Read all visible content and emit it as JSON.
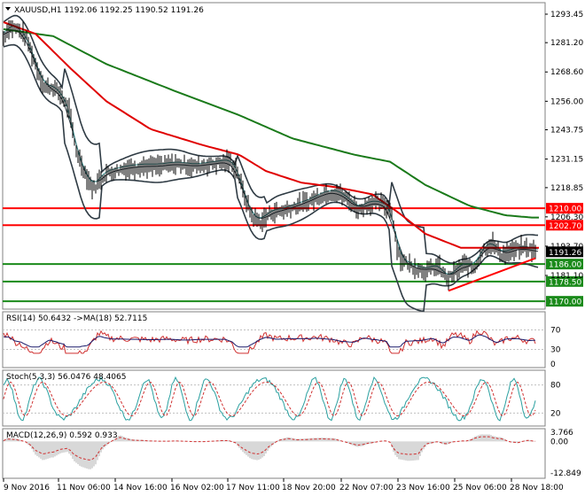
{
  "symbol_header": "XAUUSD,H1  1192.06 1192.25 1190.52 1191.26",
  "colors": {
    "price_line": "#000000",
    "bollinger": "#2f3b44",
    "ma_green": "#1a7a1a",
    "ma_red": "#e00000",
    "level_red": "#ff0000",
    "level_green": "#1a8a1a",
    "trend_red": "#ff0000",
    "current_price_bg": "#000000",
    "rsi_line": "#d03030",
    "rsi_ma": "#1a1a6a",
    "stoch_main": "#2aa0a0",
    "stoch_signal": "#d03030",
    "macd_hist": "#b0b0b0",
    "macd_signal": "#d03030"
  },
  "main_panel": {
    "y_ticks": [
      "1293.45",
      "1281.20",
      "1268.60",
      "1256.00",
      "1243.75",
      "1231.15",
      "1218.85",
      "1206.30",
      "1193.70",
      "1181.10"
    ],
    "levels_red": [
      {
        "value": 1210.0,
        "label": "1210.00"
      },
      {
        "value": 1202.7,
        "label": "1202.70"
      }
    ],
    "levels_green": [
      {
        "value": 1186.0,
        "label": "1186.00"
      },
      {
        "value": 1178.5,
        "label": "1178.50"
      },
      {
        "value": 1170.0,
        "label": "1170.00"
      }
    ],
    "current_price": {
      "value": 1191.26,
      "label": "1191.26"
    }
  },
  "rsi_panel": {
    "header": "RSI(14) 50.6432  ->MA(18) 52.7115",
    "y_ticks": [
      "70",
      "30",
      "0"
    ]
  },
  "stoch_panel": {
    "header": "Stoch(5,3,3) 56.0476 48.4065",
    "y_ticks": [
      "80",
      "20"
    ]
  },
  "macd_panel": {
    "header": "MACD(12,26,9) 0.592 0.933",
    "y_ticks": [
      "3.766",
      "0.00",
      "-12.849"
    ]
  },
  "x_axis": {
    "labels": [
      "9 Nov 2016",
      "11 Nov 06:00",
      "14 Nov 16:00",
      "16 Nov 02:00",
      "17 Nov 11:00",
      "18 Nov 20:00",
      "22 Nov 07:00",
      "23 Nov 16:00",
      "25 Nov 06:00",
      "28 Nov 18:00"
    ]
  }
}
